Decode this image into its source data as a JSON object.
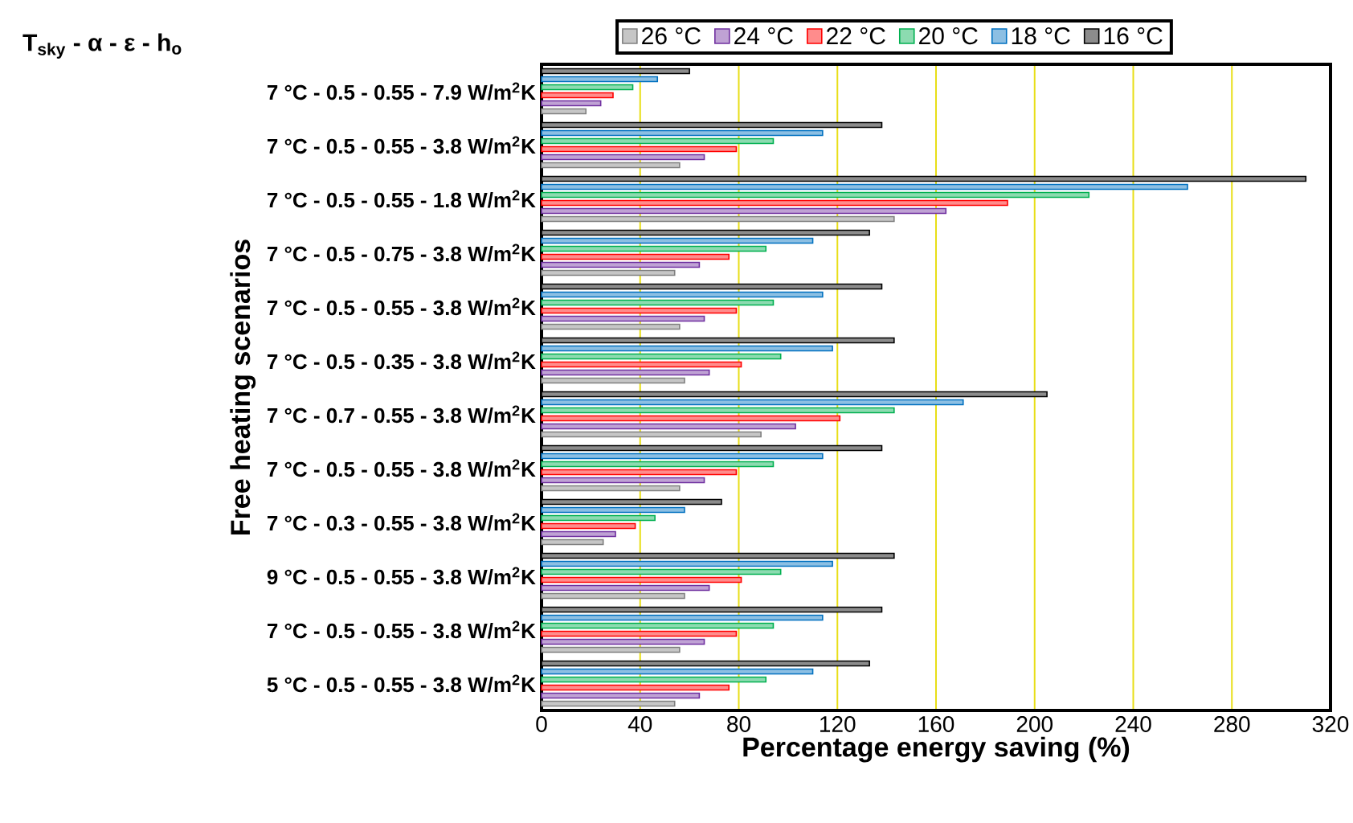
{
  "chart_data": {
    "type": "bar",
    "orientation": "horizontal",
    "xlabel": "Percentage energy saving (%)",
    "ylabel": "Free heating scenarios",
    "annotations": [
      "T$_{sky}$ - α - ε - h$_{o}$"
    ],
    "categories": [
      "7 °C - 0.5 - 0.55 - 7.9 W/m$^{2}$K",
      "7 °C - 0.5 - 0.55 - 3.8 W/m$^{2}$K",
      "7 °C - 0.5 - 0.55 - 1.8 W/m$^{2}$K",
      "7 °C - 0.5 - 0.75 - 3.8 W/m$^{2}$K",
      "7 °C - 0.5 - 0.55 - 3.8 W/m$^{2}$K",
      "7 °C - 0.5 - 0.35 - 3.8 W/m$^{2}$K",
      "7 °C - 0.7 - 0.55 - 3.8 W/m$^{2}$K",
      "7 °C - 0.5 - 0.55 - 3.8 W/m$^{2}$K",
      "7 °C - 0.3 - 0.55 - 3.8 W/m$^{2}$K",
      "9 °C - 0.5 - 0.55 - 3.8 W/m$^{2}$K",
      "7 °C - 0.5 - 0.55 - 3.8 W/m$^{2}$K",
      "5 °C - 0.5 - 0.55 - 3.8 W/m$^{2}$K"
    ],
    "series": [
      {
        "name": "26 °C",
        "color": "#808080",
        "values": [
          18,
          56,
          143,
          54,
          56,
          58,
          89,
          56,
          25,
          58,
          56,
          54
        ]
      },
      {
        "name": "24 °C",
        "color": "#7030a0",
        "values": [
          24,
          66,
          164,
          64,
          66,
          68,
          103,
          66,
          30,
          68,
          66,
          64
        ]
      },
      {
        "name": "22 °C",
        "color": "#ff0000",
        "values": [
          29,
          79,
          189,
          76,
          79,
          81,
          121,
          79,
          38,
          81,
          79,
          76
        ]
      },
      {
        "name": "20 °C",
        "color": "#00b050",
        "values": [
          37,
          94,
          222,
          91,
          94,
          97,
          143,
          94,
          46,
          97,
          94,
          91
        ]
      },
      {
        "name": "18 °C",
        "color": "#0070c0",
        "values": [
          47,
          114,
          262,
          110,
          114,
          118,
          171,
          114,
          58,
          118,
          114,
          110
        ]
      },
      {
        "name": "16 °C",
        "color": "#000000",
        "values": [
          60,
          138,
          310,
          133,
          138,
          143,
          205,
          138,
          73,
          143,
          138,
          133
        ]
      }
    ],
    "xlim": [
      0,
      320
    ],
    "xticks": [
      0,
      40,
      80,
      120,
      160,
      200,
      240,
      280,
      320
    ],
    "grid": "x",
    "legend": "top"
  }
}
